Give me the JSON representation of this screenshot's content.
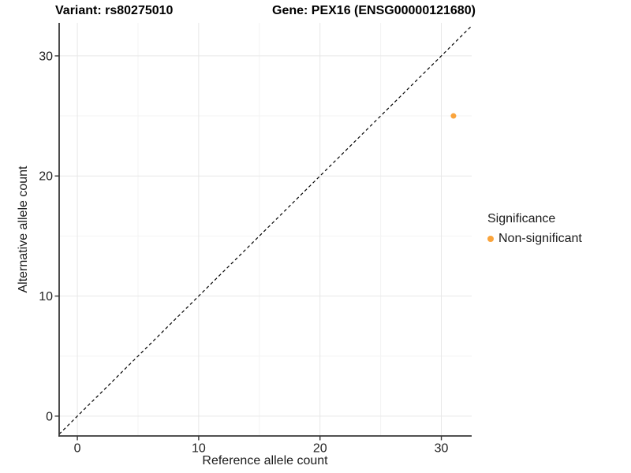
{
  "header": {
    "variant_title": "Variant: rs80275010",
    "gene_title": "Gene: PEX16 (ENSG00000121680)"
  },
  "axes": {
    "x_label": "Reference allele count",
    "y_label": "Alternative allele count"
  },
  "legend": {
    "title": "Significance",
    "items": [
      {
        "label": "Non-significant",
        "color": "#FAA43C"
      }
    ]
  },
  "chart_data": {
    "type": "scatter",
    "title": "Variant: rs80275010    Gene: PEX16 (ENSG00000121680)",
    "xlabel": "Reference allele count",
    "ylabel": "Alternative allele count",
    "xlim": [
      -1.5,
      32.5
    ],
    "ylim": [
      -1.65,
      32.75
    ],
    "x_ticks": [
      0,
      10,
      20,
      30
    ],
    "y_ticks": [
      0,
      10,
      20,
      30
    ],
    "x_minor_ticks": [
      5,
      15,
      25
    ],
    "y_minor_ticks": [
      5,
      15,
      25
    ],
    "grid": true,
    "legend_position": "right",
    "series": [
      {
        "name": "Non-significant",
        "color": "#FAA43C",
        "points": [
          {
            "x": 31,
            "y": 25
          }
        ]
      }
    ],
    "reference_line": {
      "slope": 1,
      "intercept": 0,
      "style": "dashed",
      "color": "#000000"
    },
    "point_radius": 3.5,
    "colors": {
      "grid_major": "#e7e7e7",
      "grid_minor": "#f3f3f3",
      "axis_line": "#383838",
      "tick_text": "#222222"
    }
  }
}
